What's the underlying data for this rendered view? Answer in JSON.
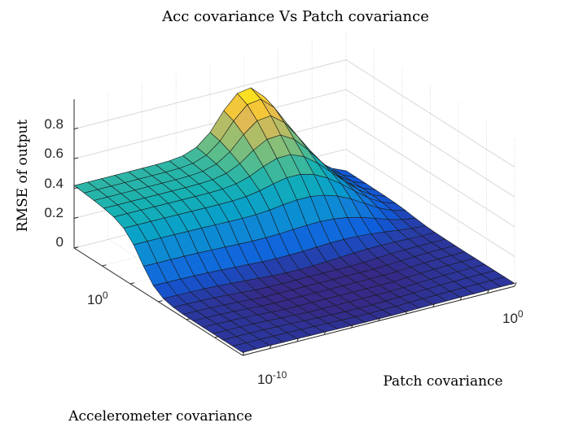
{
  "chart_data": {
    "type": "surface",
    "title": "Acc covariance Vs Patch covariance",
    "xlabel": "Patch covariance",
    "ylabel": "Accelerometer covariance",
    "zlabel": "RMSE of output",
    "x_scale": "log",
    "y_scale": "log",
    "x_ticks": [
      {
        "base": "10",
        "exp": "-10"
      },
      {
        "base": "10",
        "exp": "0"
      }
    ],
    "y_ticks": [
      {
        "base": "10",
        "exp": "0"
      }
    ],
    "z_ticks": [
      "0",
      "0.2",
      "0.4",
      "0.6",
      "0.8"
    ],
    "zlim": [
      0,
      1.0
    ],
    "grid": true,
    "colormap": "parula",
    "colors": {
      "axis": "#262626",
      "grid": "#d9d9d9",
      "edge": "#1a1a1a"
    }
  }
}
